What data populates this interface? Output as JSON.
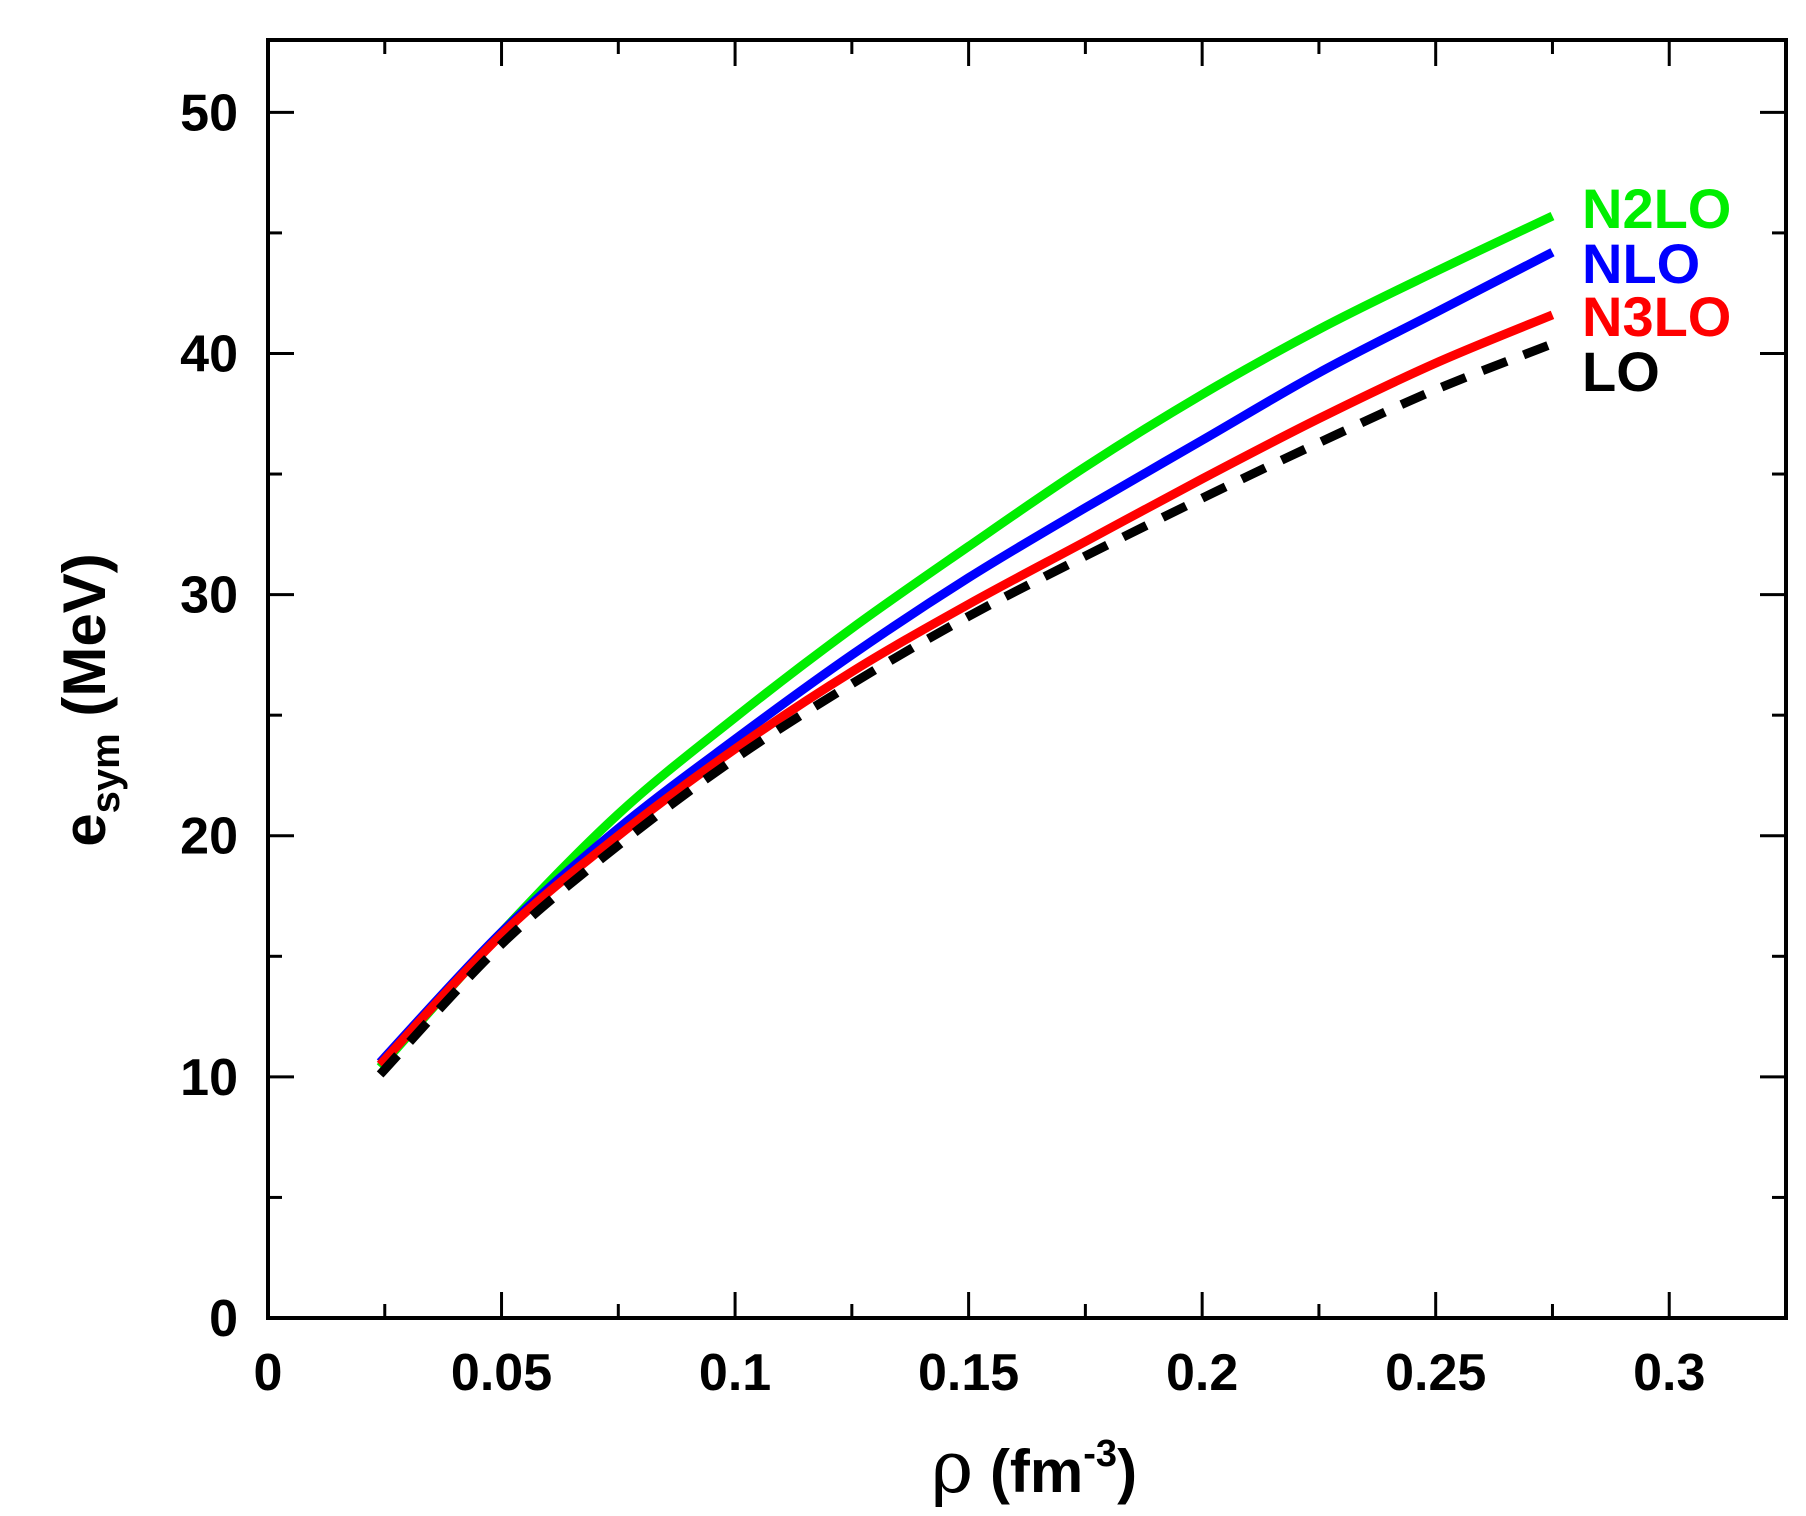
{
  "chart_data": {
    "type": "line",
    "xlabel": {
      "symbol": "ρ",
      "open": " (fm",
      "sup": "-3",
      "close": ")"
    },
    "ylabel": {
      "main": "e",
      "sub": "sym",
      "unit": " (MeV)"
    },
    "xlim": [
      0,
      0.325
    ],
    "ylim": [
      0,
      53
    ],
    "x_major_ticks": [
      0,
      0.05,
      0.1,
      0.15,
      0.2,
      0.25,
      0.3
    ],
    "x_tick_labels": [
      "0",
      "0.05",
      "0.1",
      "0.15",
      "0.2",
      "0.25",
      "0.3"
    ],
    "x_minor_step": 0.025,
    "y_major_ticks": [
      0,
      10,
      20,
      30,
      40,
      50
    ],
    "y_tick_labels": [
      "0",
      "10",
      "20",
      "30",
      "40",
      "50"
    ],
    "y_minor_step": 5,
    "grid": false,
    "x": [
      0.024,
      0.05,
      0.075,
      0.1,
      0.125,
      0.15,
      0.175,
      0.2,
      0.225,
      0.25,
      0.275
    ],
    "series": [
      {
        "name": "N2LO",
        "color": "#00ee00",
        "dashed": false,
        "values": [
          10.4,
          16.0,
          20.9,
          24.9,
          28.6,
          32.0,
          35.3,
          38.3,
          41.0,
          43.4,
          45.7
        ]
      },
      {
        "name": "NLO",
        "color": "#0000ff",
        "dashed": false,
        "values": [
          10.6,
          16.0,
          20.3,
          24.0,
          27.5,
          30.7,
          33.6,
          36.4,
          39.2,
          41.7,
          44.2
        ]
      },
      {
        "name": "N3LO",
        "color": "#ff0000",
        "dashed": false,
        "values": [
          10.5,
          15.9,
          20.0,
          23.6,
          26.8,
          29.6,
          32.2,
          34.8,
          37.3,
          39.6,
          41.6
        ]
      },
      {
        "name": "LO",
        "color": "#000000",
        "dashed": true,
        "values": [
          10.1,
          15.5,
          19.6,
          23.2,
          26.3,
          29.1,
          31.6,
          34.0,
          36.3,
          38.5,
          40.4
        ]
      }
    ]
  }
}
